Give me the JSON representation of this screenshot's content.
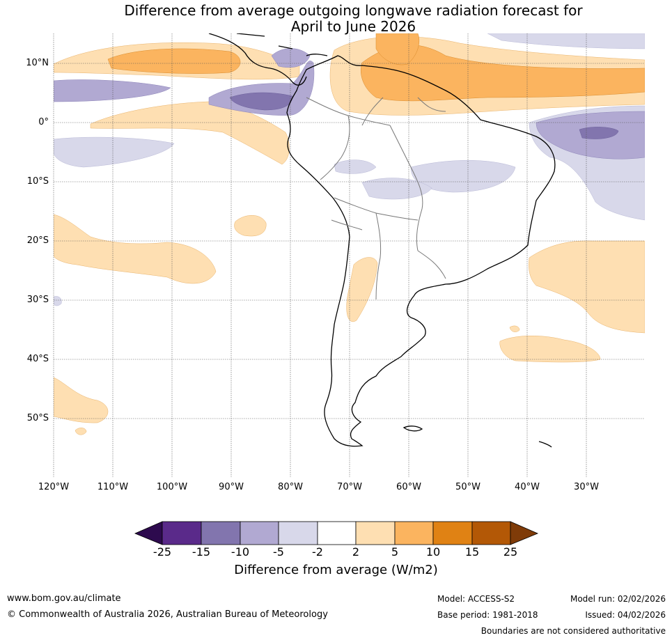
{
  "title": {
    "line1": "Difference from average outgoing longwave radiation forecast for",
    "line2": "April to June 2026"
  },
  "map": {
    "lat_labels": [
      "10°N",
      "0°",
      "10°S",
      "20°S",
      "30°S",
      "40°S",
      "50°S"
    ],
    "lon_labels": [
      "120°W",
      "110°W",
      "100°W",
      "90°W",
      "80°W",
      "70°W",
      "60°W",
      "50°W",
      "40°W",
      "30°W"
    ],
    "region": "South America",
    "colors": {
      "strong_negative": "#2d0a4e",
      "neg_25_15": "#5a2a8a",
      "neg_15_10": "#8275ae",
      "neg_10_5": "#b1a9d2",
      "neg_5_2": "#d8d8ea",
      "neutral": "#ffffff",
      "pos_2_5": "#fedfb2",
      "pos_5_10": "#fbb45f",
      "pos_10_15": "#e08214",
      "pos_15_25": "#b35806",
      "strong_positive": "#7f3b08"
    }
  },
  "colorbar": {
    "ticks": [
      "-25",
      "-15",
      "-10",
      "-5",
      "-2",
      "2",
      "5",
      "10",
      "15",
      "25"
    ],
    "label": "Difference from average (W/m2)"
  },
  "footer": {
    "url": "www.bom.gov.au/climate",
    "copyright": "© Commonwealth of Australia 2026, Australian Bureau of Meteorology",
    "model": "Model: ACCESS-S2",
    "base_period": "Base period: 1981-2018",
    "model_run": "Model run: 02/02/2026",
    "issued": "Issued: 04/02/2026",
    "disclaimer": "Boundaries are not considered authoritative"
  }
}
